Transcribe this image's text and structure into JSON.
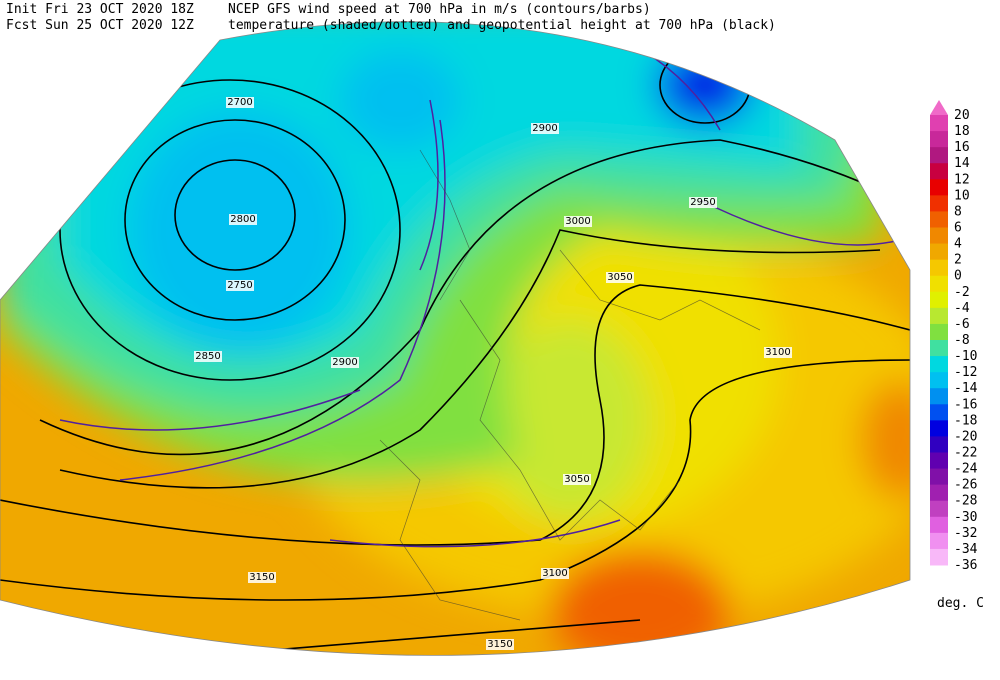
{
  "header": {
    "init": "Init  Fri 23 OCT 2020 18Z",
    "fcst": "Fcst Sun 25 OCT 2020 12Z",
    "line1": "NCEP GFS wind speed at 700 hPa in m/s (contours/barbs)",
    "line2": "temperature (shaded/dotted) and geopotential height at 700 hPa (black)"
  },
  "colorbar": {
    "levels": [
      20,
      18,
      16,
      14,
      12,
      10,
      8,
      6,
      4,
      2,
      0,
      -2,
      -4,
      -6,
      -8,
      -10,
      -12,
      -14,
      -16,
      -18,
      -20,
      -22,
      -24,
      -26,
      -28,
      -30,
      -32,
      -34,
      -36
    ],
    "colors": [
      "#f06ac8",
      "#e040b0",
      "#c8289a",
      "#b01880",
      "#c80040",
      "#e80000",
      "#f03000",
      "#f06000",
      "#f08800",
      "#f0a800",
      "#f5c800",
      "#f0e000",
      "#e0f000",
      "#b8e830",
      "#80e040",
      "#40e0a0",
      "#00d8e0",
      "#00c0f0",
      "#0090f0",
      "#0050f0",
      "#0000e0",
      "#3000c0",
      "#6000b0",
      "#8010a8",
      "#a020b0",
      "#c040c0",
      "#e060e0",
      "#f090f0",
      "#f8b8f8"
    ],
    "unit": "deg. C"
  },
  "map": {
    "labels": [
      "2700",
      "2800",
      "2750",
      "2850",
      "2900",
      "2950",
      "3000",
      "3050",
      "3100",
      "3150",
      "3150",
      "3050",
      "2900",
      "3100"
    ]
  }
}
